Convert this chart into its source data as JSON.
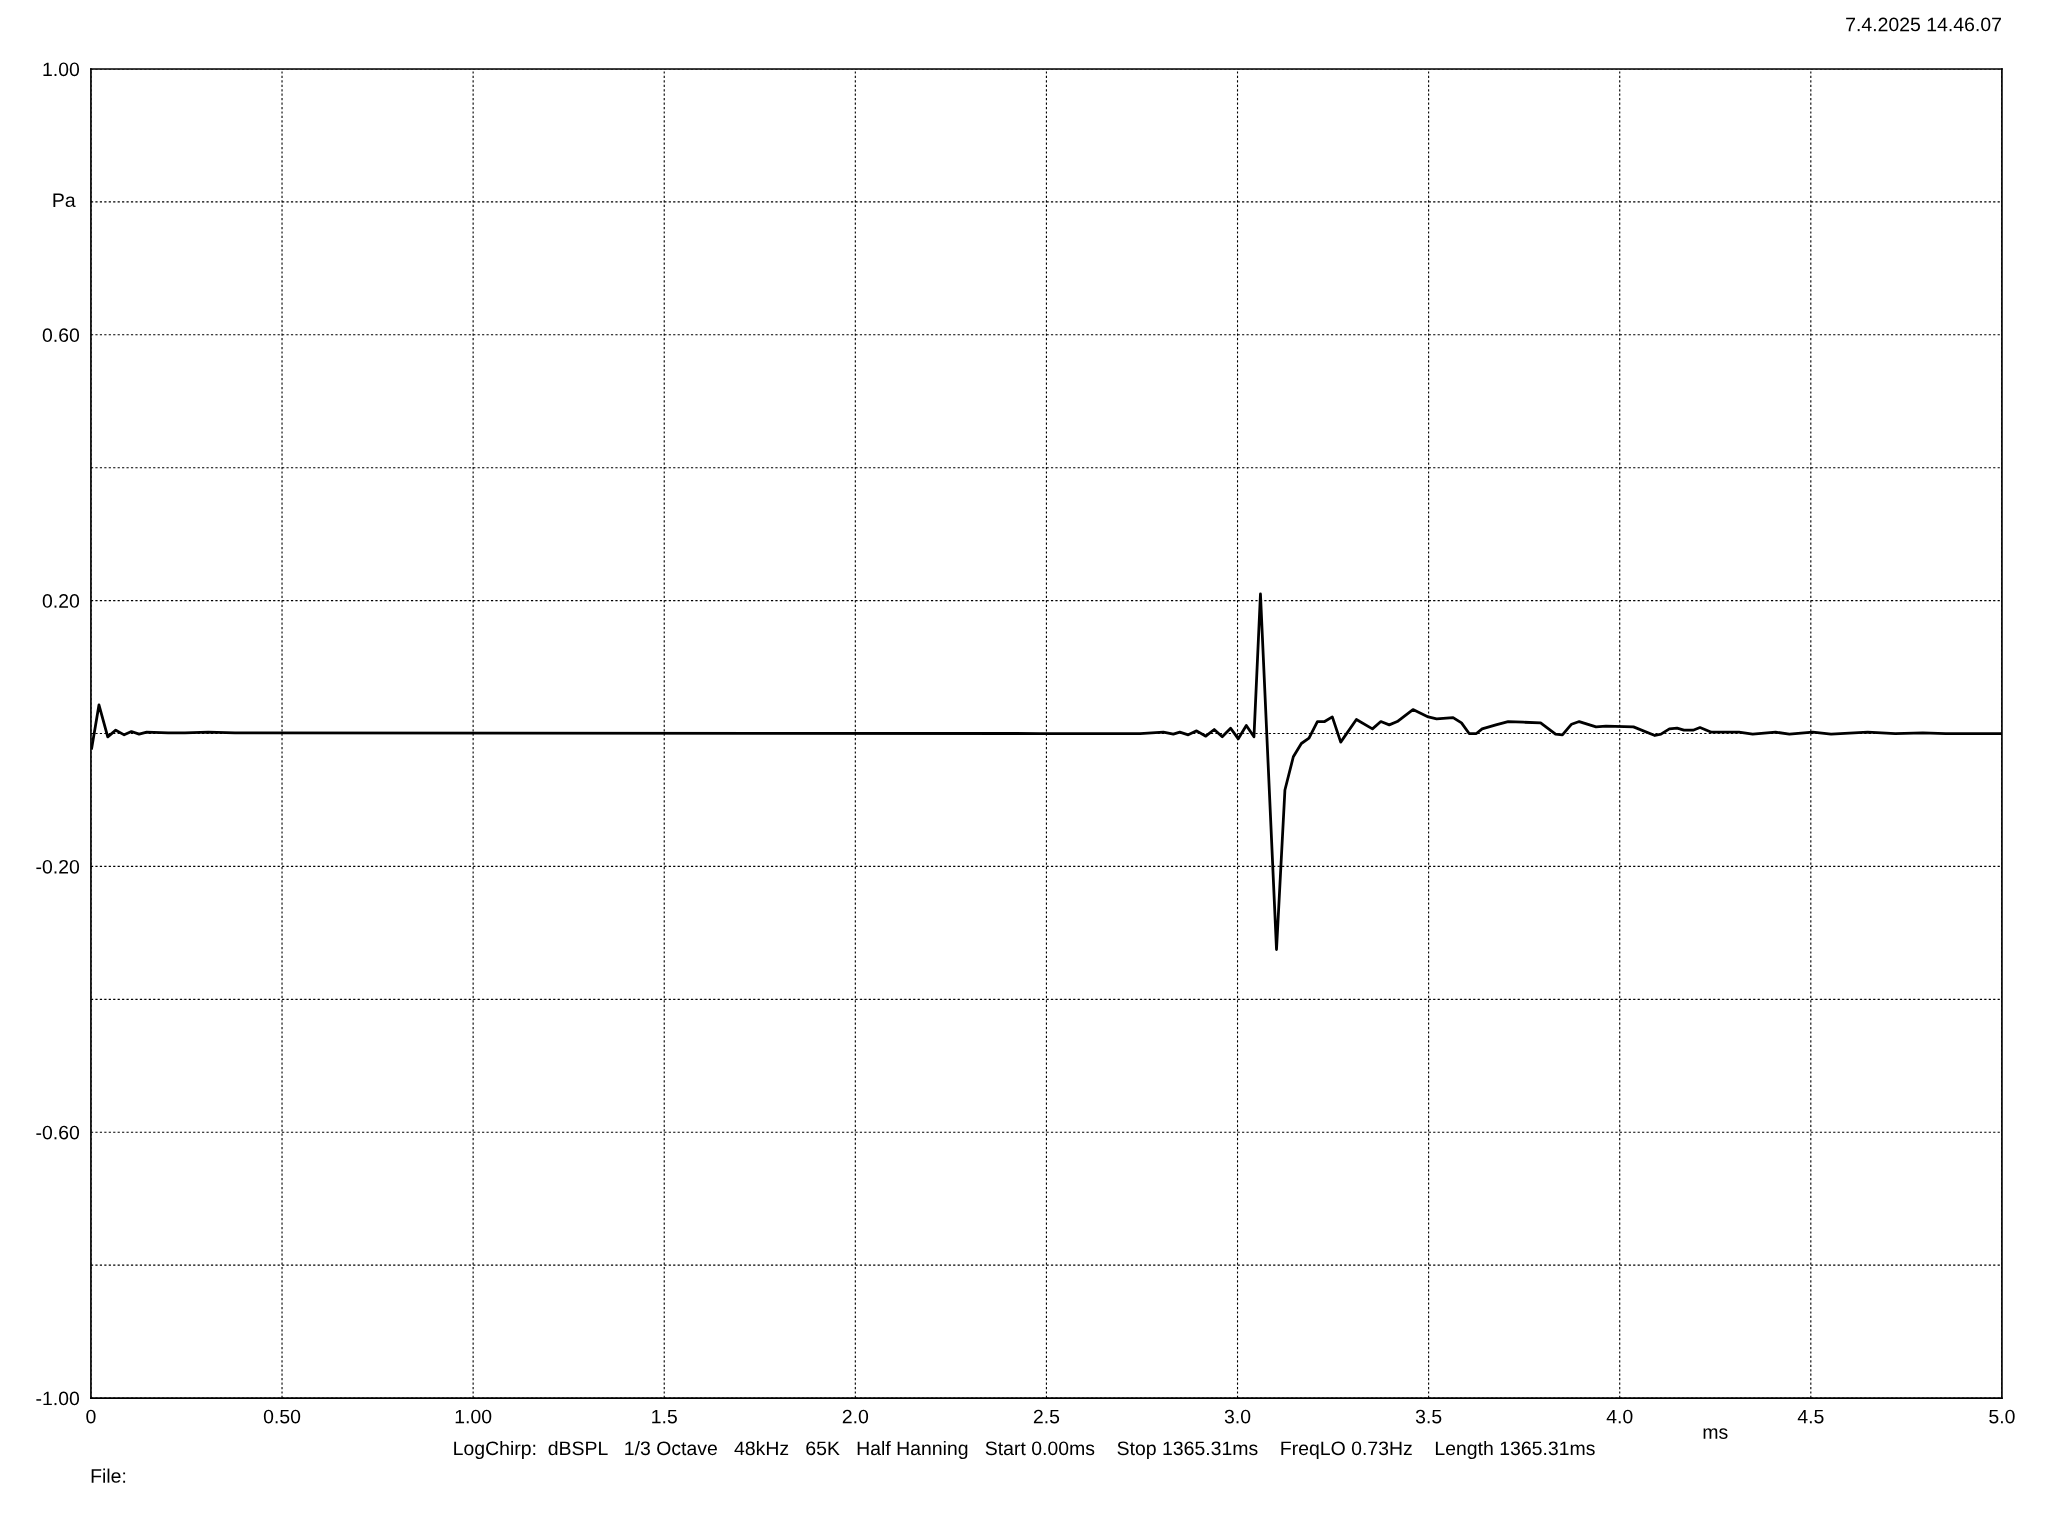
{
  "chart_data": {
    "type": "line",
    "xlabel": "ms",
    "ylabel": "Pa",
    "annotations": [
      "7.4.2025 14.46.07",
      "LogChirp:  dBSPL   1/3 Octave   48kHz   65K   Half Hanning   Start 0.00ms    Stop 1365.31ms    FreqLO 0.73Hz    Length 1365.31ms",
      "File:"
    ],
    "series": [
      {
        "color": "#000000",
        "x": [
          0.002,
          0.021,
          0.044,
          0.065,
          0.087,
          0.106,
          0.126,
          0.146,
          0.202,
          0.246,
          0.307,
          0.377,
          2.483,
          2.561,
          2.745,
          2.806,
          2.832,
          2.849,
          2.871,
          2.893,
          2.917,
          2.939,
          2.96,
          2.982,
          3.002,
          3.023,
          3.043,
          3.06,
          3.102,
          3.124,
          3.146,
          3.167,
          3.187,
          3.209,
          3.228,
          3.248,
          3.27,
          3.311,
          3.353,
          3.375,
          3.397,
          3.418,
          3.459,
          3.499,
          3.521,
          3.564,
          3.586,
          3.606,
          3.625,
          3.64,
          3.676,
          3.708,
          3.748,
          3.793,
          3.832,
          3.85,
          3.874,
          3.894,
          3.938,
          3.964,
          4.036,
          4.092,
          4.108,
          4.13,
          4.15,
          4.168,
          4.192,
          4.21,
          4.24,
          4.276,
          4.312,
          4.348,
          4.408,
          4.444,
          4.505,
          4.553,
          4.649,
          4.721,
          4.793,
          4.853,
          5.0
        ],
        "values": [
          -0.022,
          0.043,
          -0.005,
          0.005,
          -0.002,
          0.003,
          -0.001,
          0.002,
          0.001,
          0.001,
          0.002,
          0.001,
          0.0,
          0.0,
          0.0,
          0.002,
          -0.001,
          0.002,
          -0.002,
          0.004,
          -0.004,
          0.006,
          -0.005,
          0.008,
          -0.008,
          0.012,
          -0.005,
          0.21,
          -0.325,
          -0.085,
          -0.035,
          -0.015,
          -0.007,
          0.018,
          0.018,
          0.025,
          -0.013,
          0.021,
          0.007,
          0.018,
          0.013,
          0.018,
          0.036,
          0.025,
          0.022,
          0.024,
          0.016,
          0.0,
          0.0,
          0.007,
          0.013,
          0.018,
          0.017,
          0.016,
          -0.001,
          -0.002,
          0.014,
          0.018,
          0.01,
          0.011,
          0.01,
          -0.003,
          -0.001,
          0.007,
          0.008,
          0.005,
          0.005,
          0.009,
          0.002,
          0.002,
          0.002,
          -0.001,
          0.002,
          -0.001,
          0.002,
          -0.001,
          0.002,
          0.0,
          0.001,
          0.0,
          0.0
        ]
      }
    ],
    "xlim": [
      0,
      5.0
    ],
    "ylim": [
      -1.0,
      1.0
    ],
    "xticks": [
      0,
      {
        "value": 0.5,
        "label": "0.50"
      },
      {
        "value": 1.0,
        "label": "1.00"
      },
      1.5,
      {
        "value": 2.0,
        "label": "2.0"
      },
      2.5,
      {
        "value": 3.0,
        "label": "3.0"
      },
      3.5,
      {
        "value": 4.0,
        "label": "4.0"
      },
      4.5,
      {
        "value": 5.0,
        "label": "5.0"
      }
    ],
    "yticks": [
      {
        "value": 1.0,
        "label": "1.00"
      },
      {
        "value": 0.8,
        "label": null
      },
      {
        "value": 0.6,
        "label": "0.60"
      },
      {
        "value": 0.4,
        "label": null
      },
      {
        "value": 0.2,
        "label": "0.20"
      },
      {
        "value": 0,
        "label": null
      },
      {
        "value": -0.2,
        "label": "-0.20"
      },
      {
        "value": -0.4,
        "label": null
      },
      {
        "value": -0.6,
        "label": "-0.60"
      },
      {
        "value": -0.8,
        "label": null
      },
      {
        "value": -1.0,
        "label": "-1.00"
      }
    ],
    "grid": true,
    "line_style": "solid",
    "marker": "none"
  }
}
